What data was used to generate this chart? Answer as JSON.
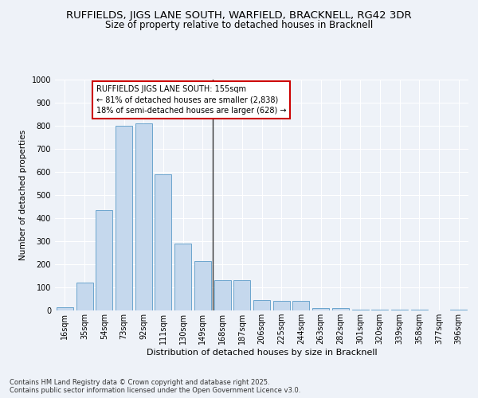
{
  "title": "RUFFIELDS, JIGS LANE SOUTH, WARFIELD, BRACKNELL, RG42 3DR",
  "subtitle": "Size of property relative to detached houses in Bracknell",
  "xlabel": "Distribution of detached houses by size in Bracknell",
  "ylabel": "Number of detached properties",
  "categories": [
    "16sqm",
    "35sqm",
    "54sqm",
    "73sqm",
    "92sqm",
    "111sqm",
    "130sqm",
    "149sqm",
    "168sqm",
    "187sqm",
    "206sqm",
    "225sqm",
    "244sqm",
    "263sqm",
    "282sqm",
    "301sqm",
    "320sqm",
    "339sqm",
    "358sqm",
    "377sqm",
    "396sqm"
  ],
  "values": [
    15,
    120,
    435,
    800,
    810,
    590,
    290,
    215,
    130,
    130,
    45,
    40,
    40,
    12,
    10,
    5,
    2,
    2,
    2,
    0,
    5
  ],
  "bar_color": "#c5d8ed",
  "bar_edge_color": "#5a9bc8",
  "highlight_index": 7,
  "highlight_line_color": "#333333",
  "annotation_text": "RUFFIELDS JIGS LANE SOUTH: 155sqm\n← 81% of detached houses are smaller (2,838)\n18% of semi-detached houses are larger (628) →",
  "annotation_box_color": "#ffffff",
  "annotation_border_color": "#cc0000",
  "ylim": [
    0,
    1000
  ],
  "yticks": [
    0,
    100,
    200,
    300,
    400,
    500,
    600,
    700,
    800,
    900,
    1000
  ],
  "background_color": "#eef2f8",
  "footer_text": "Contains HM Land Registry data © Crown copyright and database right 2025.\nContains public sector information licensed under the Open Government Licence v3.0.",
  "title_fontsize": 9.5,
  "subtitle_fontsize": 8.5,
  "xlabel_fontsize": 8,
  "ylabel_fontsize": 7.5,
  "tick_fontsize": 7,
  "annotation_fontsize": 7,
  "footer_fontsize": 6
}
